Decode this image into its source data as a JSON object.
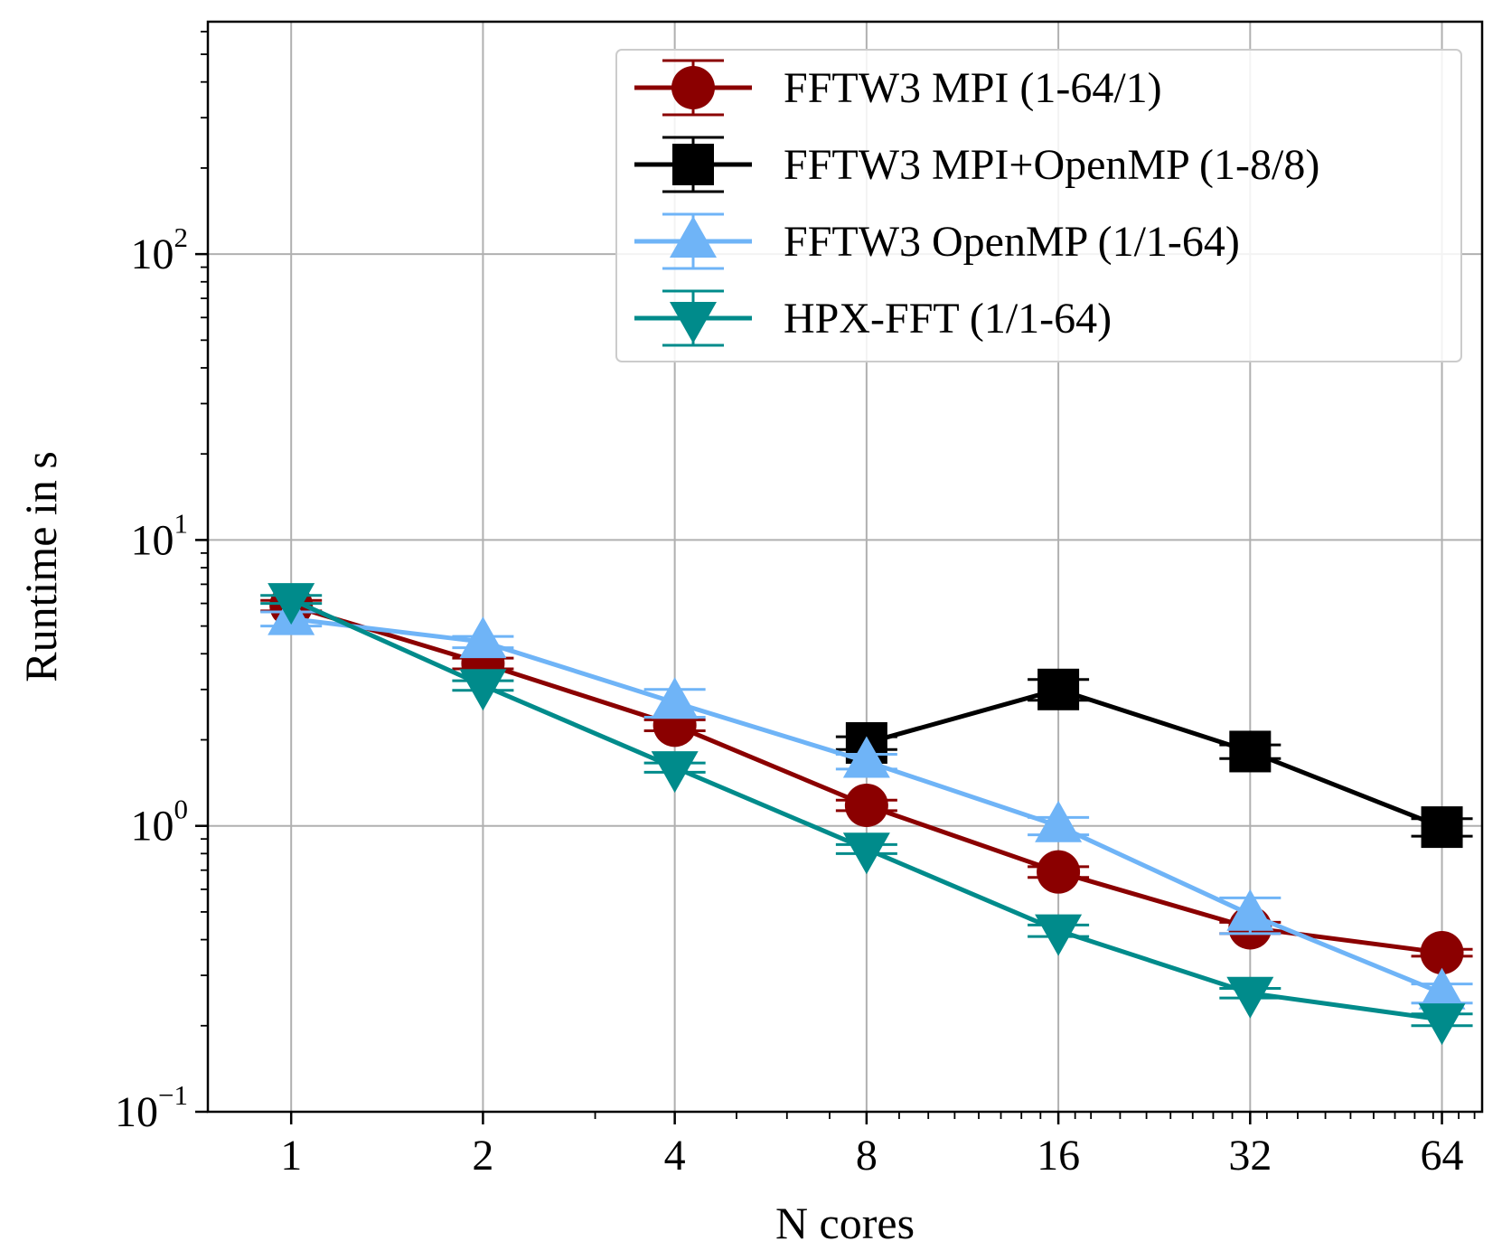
{
  "chart_data": {
    "type": "line",
    "xlabel": "N cores",
    "ylabel": "Runtime in s",
    "x": [
      1,
      2,
      4,
      8,
      16,
      32,
      64
    ],
    "x_ticks": [
      "1",
      "2",
      "4",
      "8",
      "16",
      "32",
      "64"
    ],
    "x_scale": "log2",
    "xlim": [
      0.74,
      74
    ],
    "y_scale": "log10",
    "ylim": [
      0.1,
      650
    ],
    "y_ticks": [
      {
        "value": 0.1,
        "base": "10",
        "exp": "−1"
      },
      {
        "value": 1,
        "base": "10",
        "exp": "0"
      },
      {
        "value": 10,
        "base": "10",
        "exp": "1"
      },
      {
        "value": 100,
        "base": "10",
        "exp": "2"
      }
    ],
    "grid": true,
    "legend_position": "top-right",
    "series": [
      {
        "name": "FFTW3 MPI (1-64/1)",
        "color": "#8b0000",
        "marker": "circle",
        "x": [
          1,
          2,
          4,
          8,
          16,
          32,
          64
        ],
        "y": [
          5.9,
          3.7,
          2.25,
          1.18,
          0.69,
          0.44,
          0.36
        ],
        "err": [
          0.25,
          0.16,
          0.1,
          0.05,
          0.03,
          0.02,
          0.01
        ]
      },
      {
        "name": "FFTW3 MPI+OpenMP (1-8/8)",
        "color": "#000000",
        "marker": "square",
        "x": [
          8,
          16,
          32,
          64
        ],
        "y": [
          1.95,
          3.0,
          1.82,
          0.99
        ],
        "err": [
          0.1,
          0.25,
          0.1,
          0.07
        ]
      },
      {
        "name": "FFTW3 OpenMP (1/1-64)",
        "color": "#6fb4f7",
        "marker": "triangle-up",
        "x": [
          1,
          2,
          4,
          8,
          16,
          32,
          64
        ],
        "y": [
          5.3,
          4.4,
          2.7,
          1.68,
          1.0,
          0.49,
          0.26
        ],
        "err": [
          0.3,
          0.2,
          0.3,
          0.1,
          0.07,
          0.07,
          0.02
        ]
      },
      {
        "name": "HPX-FFT (1/1-64)",
        "color": "#008b8b",
        "marker": "triangle-down",
        "x": [
          1,
          2,
          4,
          8,
          16,
          32,
          64
        ],
        "y": [
          6.2,
          3.1,
          1.6,
          0.83,
          0.43,
          0.26,
          0.21
        ],
        "err": [
          0.2,
          0.12,
          0.06,
          0.03,
          0.02,
          0.01,
          0.01
        ]
      }
    ]
  }
}
